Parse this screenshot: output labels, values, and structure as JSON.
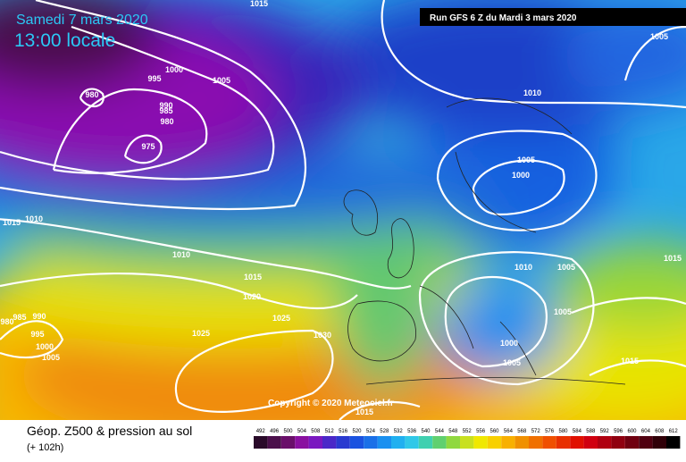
{
  "header": {
    "date": "Samedi 7 mars 2020",
    "time": "13:00 locale",
    "run": "Run GFS 6 Z du Mardi 3 mars 2020"
  },
  "copyright": "Copyright © 2020 Meteociel.fr",
  "footer": {
    "title": "Géop. Z500 & pression au sol",
    "lead": "(+ 102h)"
  },
  "scale": [
    492,
    496,
    500,
    504,
    508,
    512,
    516,
    520,
    524,
    528,
    532,
    536,
    540,
    544,
    548,
    552,
    556,
    560,
    564,
    568,
    572,
    576,
    580,
    584,
    588,
    592,
    596,
    600,
    604,
    608,
    612
  ],
  "isobar_labels": [
    1015,
    1000,
    995,
    1005,
    980,
    990,
    985,
    980,
    975,
    1010,
    1005,
    1005,
    1000,
    1015,
    1010,
    1010,
    1015,
    1020,
    1025,
    1025,
    1030,
    1010,
    1005,
    1015,
    1005,
    1000,
    1005,
    1015,
    985,
    990,
    995,
    1000,
    1005,
    1015,
    980
  ]
}
